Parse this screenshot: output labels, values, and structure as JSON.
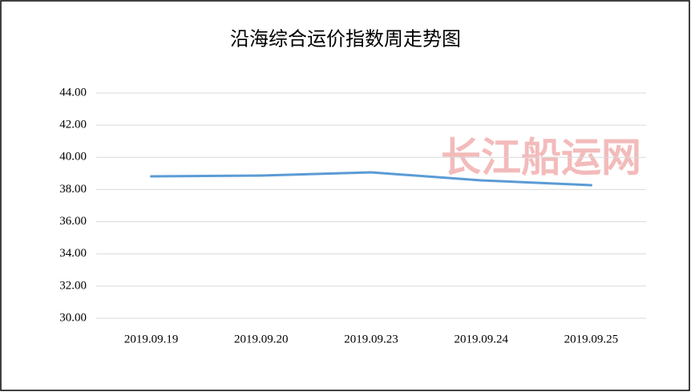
{
  "chart_data": {
    "type": "line",
    "title": "沿海综合运价指数周走势图",
    "categories": [
      "2019.09.19",
      "2019.09.20",
      "2019.09.23",
      "2019.09.24",
      "2019.09.25"
    ],
    "values": [
      38.82,
      38.87,
      39.07,
      38.57,
      38.27
    ],
    "color": "#5b9bd5",
    "ylim": [
      30,
      44
    ],
    "yticks": [
      {
        "value": 30,
        "label": "30.00"
      },
      {
        "value": 32,
        "label": "32.00"
      },
      {
        "value": 34,
        "label": "34.00"
      },
      {
        "value": 36,
        "label": "36.00"
      },
      {
        "value": 38,
        "label": "38.00"
      },
      {
        "value": 40,
        "label": "40.00"
      },
      {
        "value": 42,
        "label": "42.00"
      },
      {
        "value": 44,
        "label": "44.00"
      }
    ],
    "grid": true,
    "annotation": "长江船运网"
  }
}
